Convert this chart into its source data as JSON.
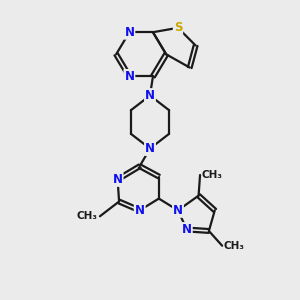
{
  "bg_color": "#ebebeb",
  "bond_color": "#1a1a1a",
  "N_color": "#1010ee",
  "S_color": "#c8a800",
  "line_width": 1.6,
  "font_size_atom": 8.5,
  "font_size_methyl": 7.5,
  "xlim": [
    0,
    10
  ],
  "ylim": [
    0,
    10
  ]
}
